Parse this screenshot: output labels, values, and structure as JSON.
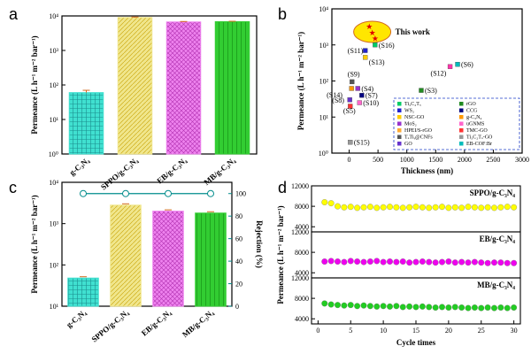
{
  "figure": {
    "panel_labels": [
      "a",
      "b",
      "c",
      "d"
    ]
  },
  "chart_data": [
    {
      "panel": "a",
      "type": "bar",
      "ylabel": "Permeance (L h⁻¹ m⁻² bar⁻¹)",
      "yscale": "log",
      "ylim": [
        1,
        10000
      ],
      "ytick_labels": [
        "10⁰",
        "10¹",
        "10²",
        "10³",
        "10⁴"
      ],
      "categories": [
        "g-C₃N₄",
        "SPPO/g-C₃N₄",
        "EB/g-C₃N₄",
        "MB/g-C₃N₄"
      ],
      "values": [
        60,
        9000,
        6700,
        6800
      ],
      "errors": [
        10,
        300,
        200,
        200
      ],
      "colors": [
        "#40E0D0",
        "#F0E68C",
        "#EE82EE",
        "#32CD32"
      ]
    },
    {
      "panel": "b",
      "type": "scatter",
      "xlabel": "Thickness (nm)",
      "ylabel": "Permeance (L h⁻¹ m⁻² bar⁻¹)",
      "yscale": "log",
      "xlim": [
        -300,
        3000
      ],
      "ylim": [
        1,
        10000
      ],
      "xtick_labels": [
        "0",
        "500",
        "1000",
        "1500",
        "2000",
        "2500",
        "3000"
      ],
      "ytick_labels": [
        "10⁰",
        "10¹",
        "10²",
        "10³",
        "10⁴"
      ],
      "highlight_label": "This work",
      "points": [
        {
          "label": "(S16)",
          "x": 450,
          "y": 1000,
          "color": "#00CC66"
        },
        {
          "label": "(S11)",
          "x": 280,
          "y": 700,
          "color": "#2222CC"
        },
        {
          "label": "(S13)",
          "x": 280,
          "y": 450,
          "color": "#FFCC00"
        },
        {
          "label": "(S6)",
          "x": 1880,
          "y": 290,
          "color": "#00BBBB"
        },
        {
          "label": "(S12)",
          "x": 1750,
          "y": 250,
          "color": "#FF33AA"
        },
        {
          "label": "(S9)",
          "x": 50,
          "y": 95,
          "color": "#555555"
        },
        {
          "label": "(S4)",
          "x": 150,
          "y": 62,
          "color": "#9933CC"
        },
        {
          "label": "(S14)",
          "x": 40,
          "y": 62,
          "color": "#FF9900"
        },
        {
          "label": "(S7)",
          "x": 220,
          "y": 40,
          "color": "#000080"
        },
        {
          "label": "(S8)",
          "x": 10,
          "y": 30,
          "color": "#6633CC"
        },
        {
          "label": "(S10)",
          "x": 180,
          "y": 25,
          "color": "#FF66CC"
        },
        {
          "label": "(S5)",
          "x": 20,
          "y": 20,
          "color": "#FF3333"
        },
        {
          "label": "(S3)",
          "x": 1250,
          "y": 55,
          "color": "#228B22"
        },
        {
          "label": "(S15)",
          "x": 20,
          "y": 2,
          "color": "#999999"
        }
      ],
      "this_work": [
        {
          "x": 350,
          "y": 3200
        },
        {
          "x": 400,
          "y": 2200
        },
        {
          "x": 450,
          "y": 1500
        }
      ],
      "legend": [
        {
          "name": "Ti₃C₂Tₓ",
          "color": "#00CC66"
        },
        {
          "name": "rGO",
          "color": "#228B22"
        },
        {
          "name": "WS₂",
          "color": "#2222CC"
        },
        {
          "name": "CCG",
          "color": "#000080"
        },
        {
          "name": "NSC-GO",
          "color": "#FFCC00"
        },
        {
          "name": "g-C₃N₄",
          "color": "#FF9900"
        },
        {
          "name": "MoS₂",
          "color": "#9933CC"
        },
        {
          "name": "uGNMS",
          "color": "#FF66CC"
        },
        {
          "name": "HPEI/S-rGO",
          "color": "#FFAA33"
        },
        {
          "name": "TMC-GO",
          "color": "#FF3333"
        },
        {
          "name": "TₓTiᵧ@CNFs",
          "color": "#555555"
        },
        {
          "name": "Ti₃C₂Tₓ-GO",
          "color": "#999999"
        },
        {
          "name": "GO",
          "color": "#6633CC"
        },
        {
          "name": "EB-COF:Br",
          "color": "#00BBBB"
        }
      ]
    },
    {
      "panel": "c",
      "type": "bar",
      "ylabel": "Permeance (L h⁻¹ m⁻² bar⁻¹)",
      "y2label": "Rejection (%)",
      "yscale": "log",
      "ylim": [
        10,
        10000
      ],
      "y2lim": [
        0,
        110
      ],
      "ytick_labels": [
        "10¹",
        "10²",
        "10³",
        "10⁴"
      ],
      "y2tick_labels": [
        "0",
        "20",
        "40",
        "60",
        "80",
        "100"
      ],
      "categories": [
        "g-C₃N₄",
        "SPPO/g-C₃N₄",
        "EB/g-C₃N₄",
        "MB/g-C₃N₄"
      ],
      "values": [
        48,
        2800,
        2000,
        1800
      ],
      "rejection": [
        100,
        100,
        100,
        100
      ],
      "colors": [
        "#40E0D0",
        "#F0E68C",
        "#EE82EE",
        "#32CD32"
      ]
    },
    {
      "panel": "d",
      "type": "scatter",
      "xlabel": "Cycle times",
      "ylabel": "Permeance (L h⁻¹ m⁻² bar⁻¹)",
      "xlim": [
        -1,
        31
      ],
      "xtick_labels": [
        "0",
        "5",
        "10",
        "15",
        "20",
        "25",
        "30"
      ],
      "subplots": [
        {
          "name": "SPPO/g-C₃N₄",
          "color": "#FFFF00",
          "name_color": "#FF8C00",
          "ylim": [
            3000,
            12000
          ],
          "ytick_labels": [
            "4000",
            "8000",
            "12000"
          ],
          "values": [
            8800,
            8600,
            8000,
            7800,
            7900,
            7700,
            7800,
            7900,
            7700,
            7800,
            7900,
            7800,
            7700,
            7800,
            7900,
            7800,
            7700,
            7800,
            7900,
            7700,
            7800,
            7700,
            7900,
            7800,
            7700,
            7800,
            7700,
            7800,
            7900,
            7800
          ]
        },
        {
          "name": "EB/g-C₃N₄",
          "color": "#EE00EE",
          "name_color": "#FF8C00",
          "ylim": [
            3000,
            12000
          ],
          "ytick_labels": [
            "4000",
            "8000",
            "12000"
          ],
          "values": [
            6200,
            6300,
            6200,
            6100,
            6300,
            6200,
            6100,
            6200,
            6300,
            6100,
            6200,
            6100,
            6200,
            6000,
            6100,
            6200,
            6100,
            6000,
            6100,
            6200,
            6000,
            6100,
            6000,
            6100,
            6000,
            5900,
            6000,
            6000,
            5900,
            5900
          ]
        },
        {
          "name": "MB/g-C₃N₄",
          "color": "#22CC22",
          "name_color": "#FF8C00",
          "ylim": [
            3000,
            12000
          ],
          "ytick_labels": [
            "4000",
            "8000",
            "12000"
          ],
          "values": [
            7000,
            6800,
            6700,
            6600,
            6700,
            6500,
            6600,
            6500,
            6400,
            6500,
            6400,
            6500,
            6300,
            6400,
            6300,
            6400,
            6300,
            6200,
            6300,
            6200,
            6300,
            6200,
            6100,
            6200,
            6100,
            6200,
            6100,
            6200,
            6100,
            6200
          ]
        }
      ]
    }
  ]
}
